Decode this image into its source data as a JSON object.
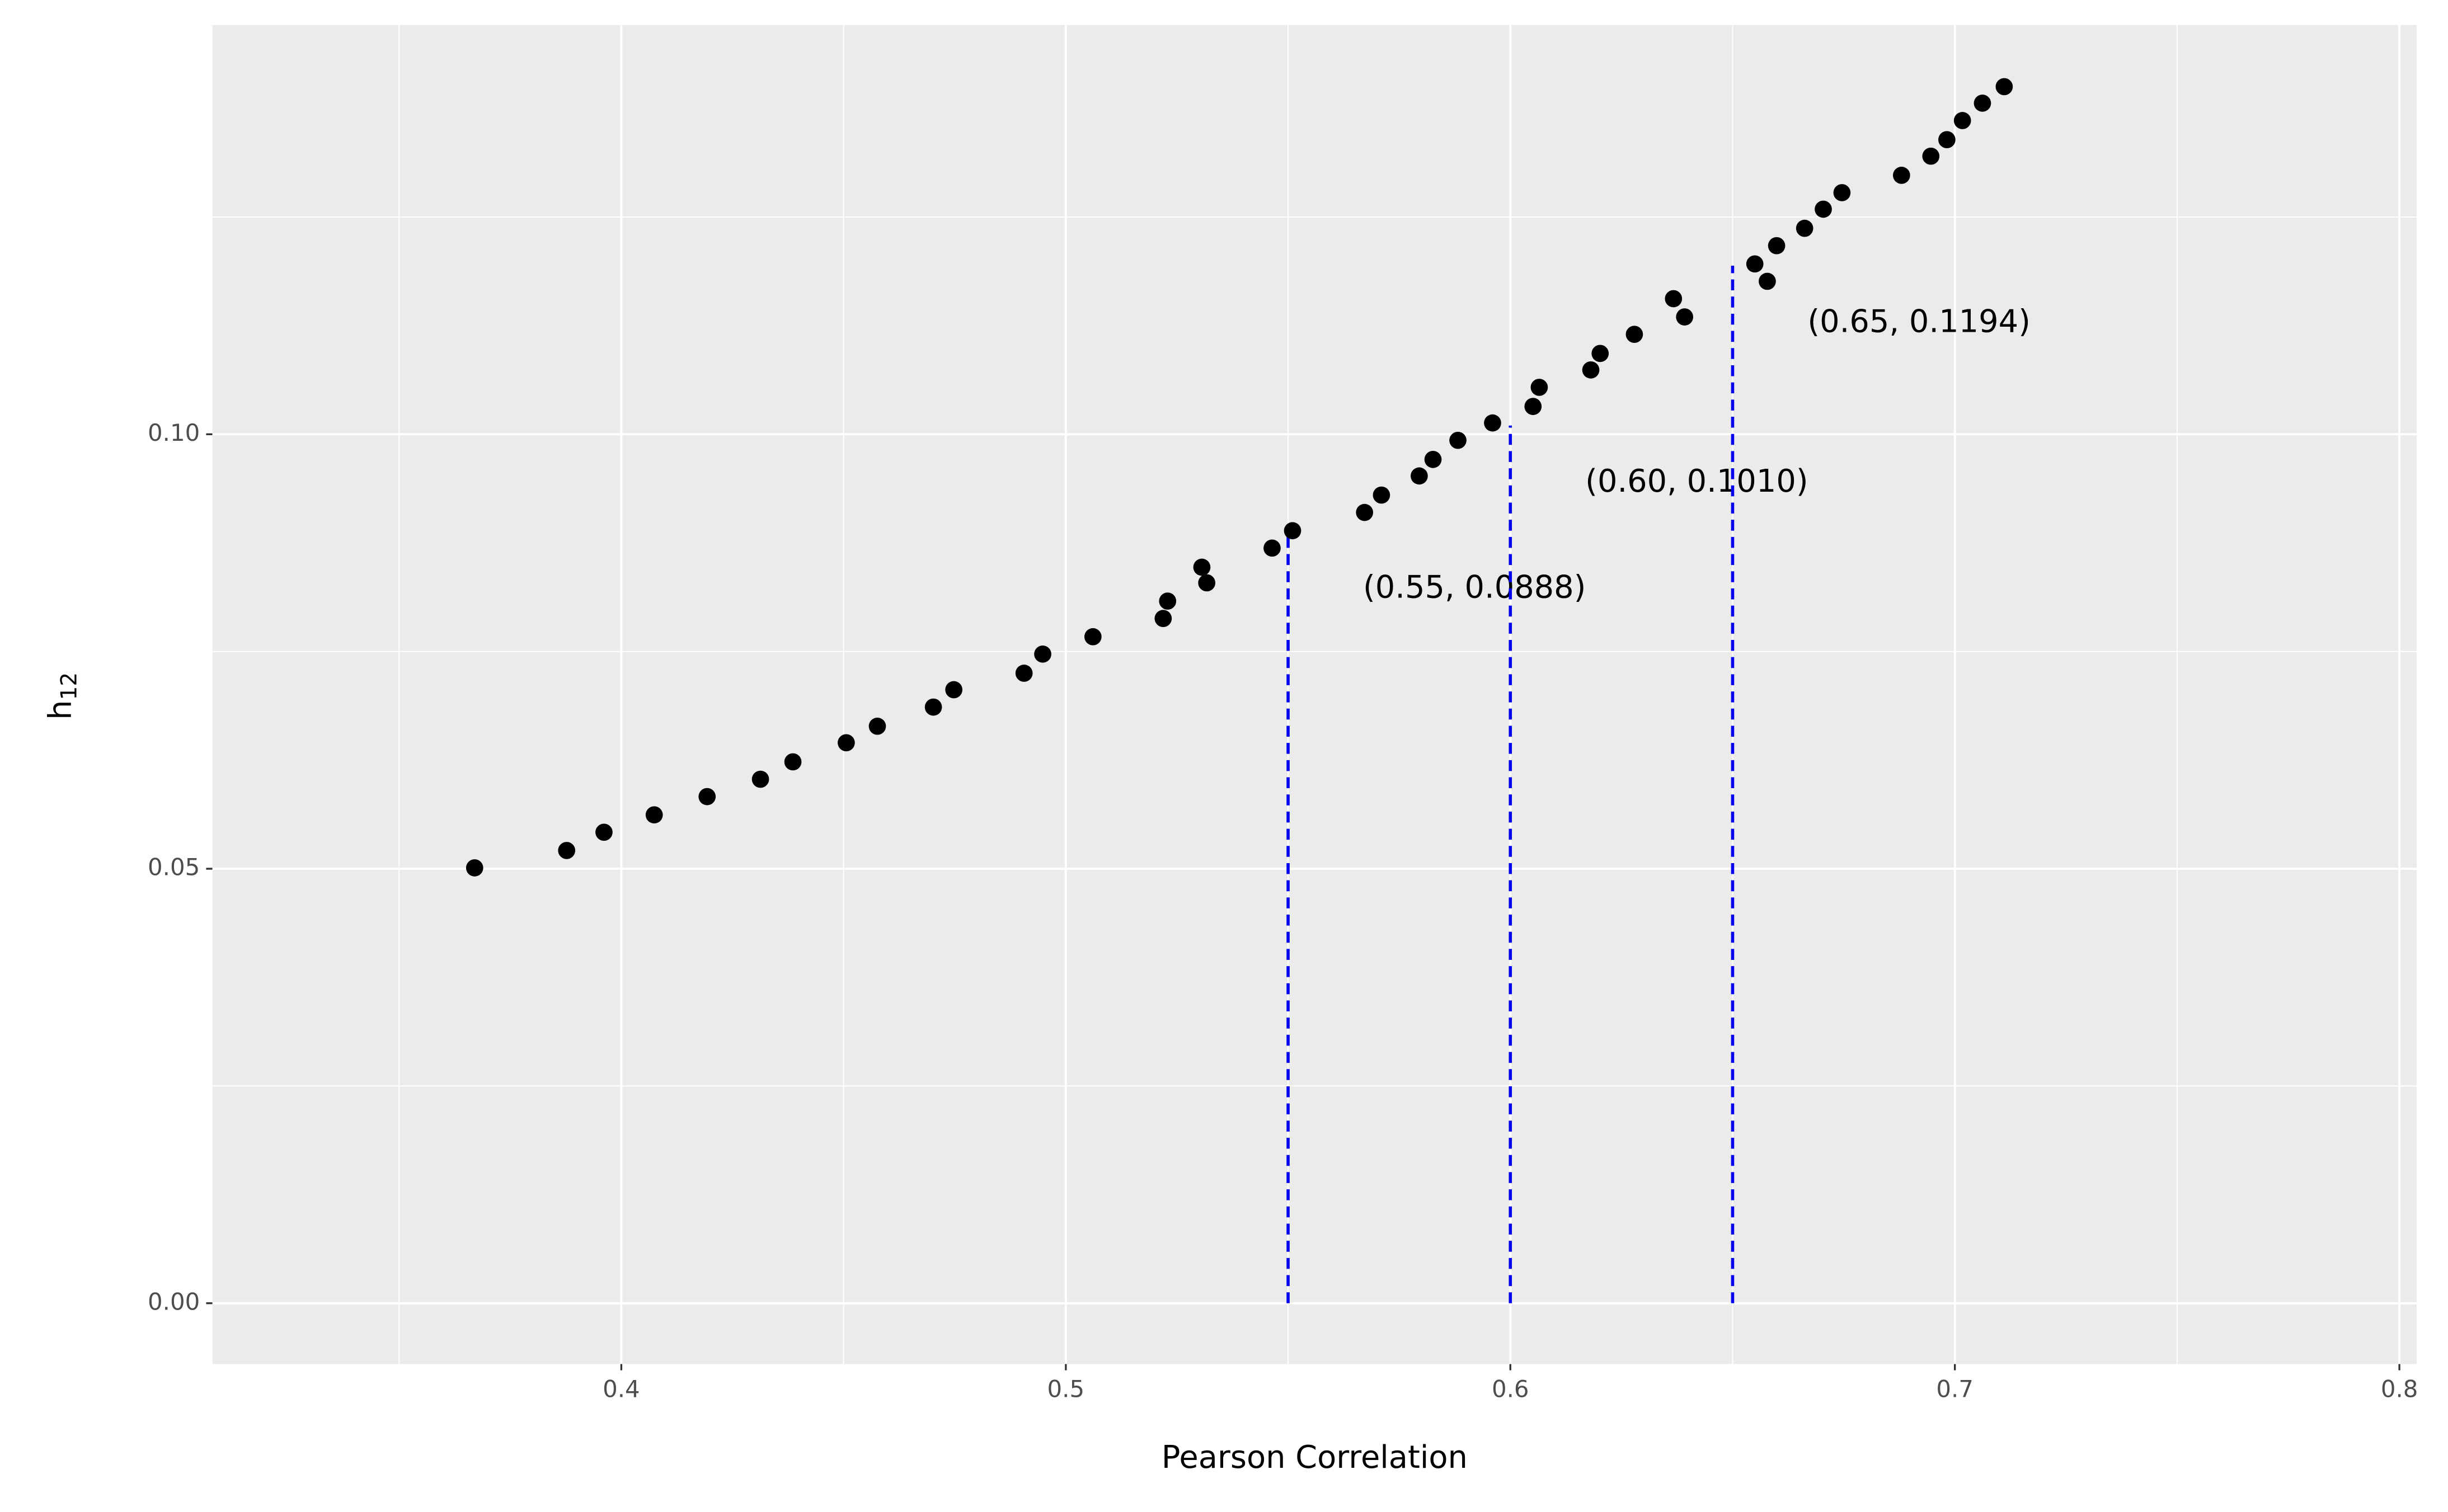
{
  "chart_data": {
    "type": "scatter",
    "xlabel": "Pearson Correlation",
    "ylabel": "h",
    "ylabel_subscript": "12",
    "xlim": [
      0.308,
      0.8039
    ],
    "ylim": [
      -0.007,
      0.1471
    ],
    "xticks": [
      0.4,
      0.5,
      0.6,
      0.7,
      0.8
    ],
    "yticks": [
      {
        "value": 0,
        "label": "0.00"
      },
      {
        "value": 0.05,
        "label": "0.05"
      },
      {
        "value": 0.1,
        "label": "0.10"
      }
    ],
    "x_minor_grid": [
      0.35,
      0.45,
      0.55,
      0.65,
      0.75
    ],
    "y_minor_grid": [
      0.025,
      0.075,
      0.125
    ],
    "grid": true,
    "color": "#000000",
    "x": [
      0.367,
      0.3877,
      0.3961,
      0.4074,
      0.4193,
      0.4313,
      0.4386,
      0.4506,
      0.4576,
      0.4702,
      0.4748,
      0.4906,
      0.4948,
      0.5061,
      0.5219,
      0.5229,
      0.5306,
      0.5317,
      0.5464,
      0.551,
      0.5672,
      0.571,
      0.5795,
      0.5826,
      0.5882,
      0.596,
      0.6051,
      0.6065,
      0.6181,
      0.6202,
      0.6279,
      0.6367,
      0.6392,
      0.655,
      0.6578,
      0.6599,
      0.6662,
      0.6704,
      0.6746,
      0.688,
      0.6946,
      0.6982,
      0.7017,
      0.7062,
      0.7111
    ],
    "values": [
      0.0501,
      0.0521,
      0.0542,
      0.0562,
      0.0583,
      0.0603,
      0.0623,
      0.0645,
      0.0664,
      0.0686,
      0.0706,
      0.0725,
      0.0747,
      0.0767,
      0.0788,
      0.0808,
      0.0847,
      0.0829,
      0.0869,
      0.0889,
      0.091,
      0.093,
      0.0952,
      0.0971,
      0.0993,
      0.1013,
      0.1032,
      0.1054,
      0.1074,
      0.1093,
      0.1115,
      0.1156,
      0.1135,
      0.1196,
      0.1176,
      0.1217,
      0.1237,
      0.1259,
      0.1278,
      0.1298,
      0.132,
      0.1339,
      0.1361,
      0.1381,
      0.14
    ],
    "reference_lines": [
      {
        "x": 0.55,
        "y": 0.0888,
        "label": "(0.55, 0.0888)"
      },
      {
        "x": 0.6,
        "y": 0.101,
        "label": "(0.60, 0.1010)"
      },
      {
        "x": 0.65,
        "y": 0.1194,
        "label": "(0.65, 0.1194)"
      }
    ],
    "reference_color": "#0000ee"
  }
}
